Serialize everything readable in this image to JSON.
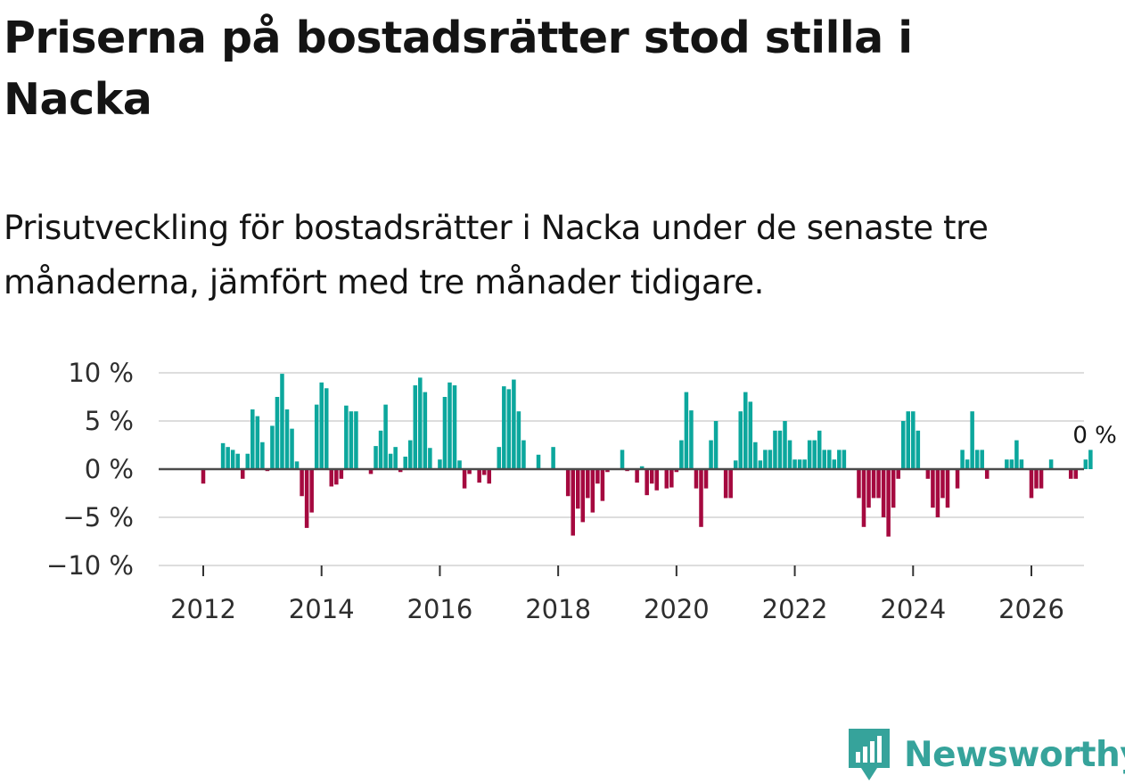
{
  "title": "Priserna på bostadsrätter stod stilla i Nacka",
  "subtitle": "Prisutveckling för bostadsrätter i Nacka under de senaste tre månaderna, jämfört med tre månader tidigare.",
  "brand": {
    "name": "Newsworthy",
    "color": "#36a39b"
  },
  "colors": {
    "positive": "#0ca79d",
    "negative": "#a5093f",
    "zero_line": "#4a4a4a",
    "grid": "#dddddd"
  },
  "chart_data": {
    "type": "bar",
    "title": "Priserna på bostadsrätter stod stilla i Nacka",
    "xlabel": "",
    "ylabel": "",
    "ylim": [
      -10,
      10
    ],
    "y_ticks": [
      {
        "value": 10,
        "label": "10 %"
      },
      {
        "value": 5,
        "label": "5 %"
      },
      {
        "value": 0,
        "label": "0 %"
      },
      {
        "value": -5,
        "label": "−5 %"
      },
      {
        "value": -10,
        "label": "−10 %"
      }
    ],
    "x_ticks": [
      {
        "value": 2012,
        "label": "2012"
      },
      {
        "value": 2014,
        "label": "2014"
      },
      {
        "value": 2016,
        "label": "2016"
      },
      {
        "value": 2018,
        "label": "2018"
      },
      {
        "value": 2020,
        "label": "2020"
      },
      {
        "value": 2022,
        "label": "2022"
      },
      {
        "value": 2024,
        "label": "2024"
      },
      {
        "value": 2026,
        "label": "2026"
      }
    ],
    "x_start": 2011.25,
    "months_per_year": 12,
    "annotation": {
      "text": "0 %"
    },
    "series": [
      {
        "name": "Prisutveckling (%)",
        "values": [
          0,
          0,
          0,
          0,
          0,
          0,
          0,
          0,
          0,
          -1.5,
          0,
          0,
          0,
          2.7,
          2.3,
          2.0,
          1.6,
          -1.0,
          1.6,
          6.2,
          5.5,
          2.8,
          -0.2,
          4.5,
          7.5,
          9.9,
          6.2,
          4.2,
          0.8,
          -2.8,
          -6.1,
          -4.5,
          6.7,
          9.0,
          8.4,
          -1.8,
          -1.6,
          -1.0,
          6.6,
          6.0,
          6.0,
          0,
          0,
          -0.5,
          2.4,
          4.0,
          6.7,
          1.6,
          2.3,
          -0.3,
          1.3,
          3.0,
          8.7,
          9.5,
          8.0,
          2.2,
          0,
          1.0,
          7.5,
          9.0,
          8.7,
          0.9,
          -2.0,
          -0.5,
          0,
          -1.4,
          -0.6,
          -1.5,
          0,
          2.3,
          8.6,
          8.3,
          9.3,
          6.0,
          3.0,
          0,
          0,
          1.5,
          0,
          0,
          2.3,
          0,
          0,
          -2.8,
          -6.9,
          -4.1,
          -5.5,
          -3.0,
          -4.5,
          -1.5,
          -3.3,
          -0.3,
          0,
          0,
          2.0,
          -0.2,
          -0.1,
          -1.4,
          0.3,
          -2.7,
          -1.5,
          -2.2,
          -0.1,
          -2.0,
          -1.9,
          -0.3,
          3.0,
          8.0,
          6.1,
          -2.0,
          -6.0,
          -2.0,
          3.0,
          5.0,
          0,
          -3.0,
          -3.0,
          0.9,
          6.0,
          8.0,
          7.0,
          2.8,
          0.9,
          2.0,
          2.0,
          4.0,
          4.0,
          5.0,
          3.0,
          1.0,
          1.0,
          1.0,
          3.0,
          3.0,
          4.0,
          2.0,
          2.0,
          1.0,
          2.0,
          2.0,
          0,
          0,
          -3.0,
          -6.0,
          -4.0,
          -3.0,
          -3.0,
          -5.0,
          -7.0,
          -4.0,
          -1.0,
          5.0,
          6.0,
          6.0,
          4.0,
          0,
          -1.0,
          -4.0,
          -5.0,
          -3.0,
          -4.0,
          0,
          -2.0,
          2.0,
          1.0,
          6.0,
          2.0,
          2.0,
          -1.0,
          0,
          0,
          0,
          1.0,
          1.0,
          3.0,
          1.0,
          0,
          -3.0,
          -2.0,
          -2.0,
          0,
          1.0,
          0,
          0,
          0,
          -1.0,
          -1.0,
          0,
          1.0,
          2.0
        ]
      }
    ]
  }
}
